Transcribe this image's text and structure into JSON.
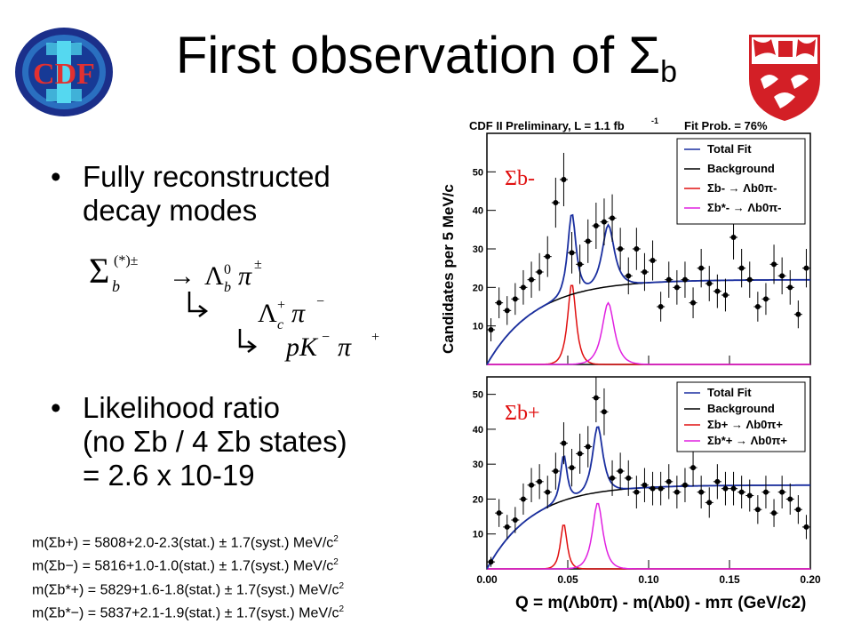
{
  "slide": {
    "title_main": "First observation of Σ",
    "title_sub": "b"
  },
  "bullets": [
    {
      "lines": [
        "Fully reconstructed",
        "decay modes"
      ]
    },
    {
      "lines": [
        "Likelihood ratio",
        "(no Σb / 4 Σb states)",
        "= 2.6 x 10-19"
      ]
    }
  ],
  "decay_chain": {
    "line1": "Σb(*)± → Λb0π±",
    "line2": "↳ Λc+π−",
    "line3": "↳ pK−π+"
  },
  "results": [
    {
      "label": "m(Σb+)",
      "value": "= 5808+2.0-2.3(stat.) ± 1.7(syst.) MeV/c",
      "unit_exp": "2"
    },
    {
      "label": "m(Σb−)",
      "value": "= 5816+1.0-1.0(stat.) ± 1.7(syst.) MeV/c",
      "unit_exp": "2"
    },
    {
      "label": "m(Σb*+)",
      "value": "= 5829+1.6-1.8(stat.) ± 1.7(syst.) MeV/c",
      "unit_exp": "2"
    },
    {
      "label": "m(Σb*−)",
      "value": "= 5837+2.1-1.9(stat.) ± 1.7(syst.) MeV/c",
      "unit_exp": "2"
    }
  ],
  "chart_data": {
    "type": "line",
    "header_left": "CDF II Preliminary, L = 1.1 fb",
    "header_left_exp": "-1",
    "header_right": "Fit Prob. = 76%",
    "ylabel": "Candidates per 5 MeV/c",
    "ylabel_exp": "2",
    "xlabel": "Q = m(Λb0π) - m(Λb0) - mπ  (GeV/c2)",
    "xlim": [
      0.0,
      0.2
    ],
    "x_ticks": [
      "0.00",
      "0.05",
      "0.10",
      "0.15",
      "0.20"
    ],
    "legend": [
      "Total Fit",
      "Background",
      "Σb → Λb0π",
      "Σb* → Λb0π"
    ],
    "colors": {
      "total": "#1a2fa0",
      "background": "#000000",
      "sigma": "#e01010",
      "sigmastar": "#e020e0",
      "points": "#000000"
    },
    "panels": [
      {
        "label": "Σb-",
        "ylim": [
          0,
          60
        ],
        "y_ticks": [
          "10",
          "20",
          "30",
          "40",
          "50"
        ],
        "legend_labels": [
          "Total Fit",
          "Background",
          "Σb- → Λb0π-",
          "Σb*- → Λb0π-"
        ],
        "data_x": [
          0.0025,
          0.0075,
          0.0125,
          0.0175,
          0.0225,
          0.0275,
          0.0325,
          0.0375,
          0.0425,
          0.0475,
          0.0525,
          0.0575,
          0.0625,
          0.0675,
          0.0725,
          0.0775,
          0.0825,
          0.0875,
          0.0925,
          0.0975,
          0.1025,
          0.1075,
          0.1125,
          0.1175,
          0.1225,
          0.1275,
          0.1325,
          0.1375,
          0.1425,
          0.1475,
          0.1525,
          0.1575,
          0.1625,
          0.1675,
          0.1725,
          0.1775,
          0.1825,
          0.1875,
          0.1925,
          0.1975
        ],
        "data_y": [
          9,
          16,
          14,
          17,
          20,
          22,
          24,
          28,
          42,
          48,
          29,
          26,
          32,
          36,
          37,
          38,
          30,
          23,
          30,
          24,
          27,
          15,
          22,
          20,
          22,
          16,
          25,
          21,
          19,
          18,
          33,
          25,
          22,
          15,
          17,
          26,
          23,
          20,
          13,
          25
        ],
        "background": {
          "plateau": 22,
          "rise": 0.03
        },
        "sigma_peak": {
          "mean": 0.0525,
          "width": 0.0045,
          "height": 21
        },
        "sigmastar_peak": {
          "mean": 0.075,
          "width": 0.0065,
          "height": 16
        }
      },
      {
        "label": "Σb+",
        "ylim": [
          0,
          55
        ],
        "y_ticks": [
          "10",
          "20",
          "30",
          "40",
          "50"
        ],
        "legend_labels": [
          "Total Fit",
          "Background",
          "Σb+ → Λb0π+",
          "Σb*+ → Λb0π+"
        ],
        "data_x": [
          0.0025,
          0.0075,
          0.0125,
          0.0175,
          0.0225,
          0.0275,
          0.0325,
          0.0375,
          0.0425,
          0.0475,
          0.0525,
          0.0575,
          0.0625,
          0.0675,
          0.0725,
          0.0775,
          0.0825,
          0.0875,
          0.0925,
          0.0975,
          0.1025,
          0.1075,
          0.1125,
          0.1175,
          0.1225,
          0.1275,
          0.1325,
          0.1375,
          0.1425,
          0.1475,
          0.1525,
          0.1575,
          0.1625,
          0.1675,
          0.1725,
          0.1775,
          0.1825,
          0.1875,
          0.1925,
          0.1975
        ],
        "data_y": [
          2,
          16,
          12,
          14,
          20,
          24,
          25,
          22,
          28,
          36,
          29,
          33,
          35,
          49,
          45,
          26,
          28,
          26,
          22,
          24,
          23,
          23,
          25,
          22,
          24,
          29,
          22,
          19,
          25,
          23,
          23,
          22,
          21,
          17,
          22,
          16,
          22,
          20,
          17,
          12
        ],
        "background": {
          "plateau": 24,
          "rise": 0.028
        },
        "sigma_peak": {
          "mean": 0.0475,
          "width": 0.0035,
          "height": 13
        },
        "sigmastar_peak": {
          "mean": 0.0685,
          "width": 0.0055,
          "height": 19
        }
      }
    ]
  }
}
